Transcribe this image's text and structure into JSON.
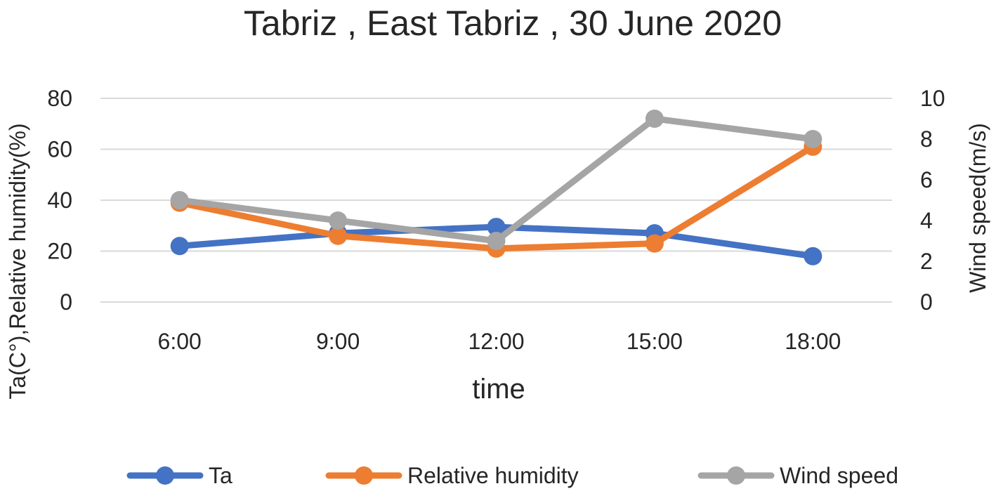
{
  "chart_data": {
    "type": "line",
    "title": "Tabriz , East Tabriz , 30 June 2020",
    "xlabel": "time",
    "ylabel": "Ta(C°),Relative humidity(%)",
    "y2label": "Wind speed(m/s)",
    "categories": [
      "6:00",
      "9:00",
      "12:00",
      "15:00",
      "18:00"
    ],
    "ylim": [
      0,
      80
    ],
    "yticks": [
      "0",
      "20",
      "40",
      "60",
      "80"
    ],
    "y2lim": [
      0,
      10
    ],
    "y2ticks": [
      "0",
      "2",
      "4",
      "6",
      "8",
      "10"
    ],
    "grid": true,
    "legend_position": "bottom",
    "series": [
      {
        "name": "Ta",
        "axis": "left",
        "color": "#4472C4",
        "values": [
          22,
          27,
          29.5,
          27,
          18
        ]
      },
      {
        "name": "Relative humidity",
        "axis": "left",
        "color": "#ED7D31",
        "values": [
          39,
          26,
          21,
          23,
          61
        ]
      },
      {
        "name": "Wind speed",
        "axis": "right",
        "color": "#A5A5A5",
        "values": [
          5,
          4,
          3,
          9,
          8
        ]
      }
    ]
  }
}
